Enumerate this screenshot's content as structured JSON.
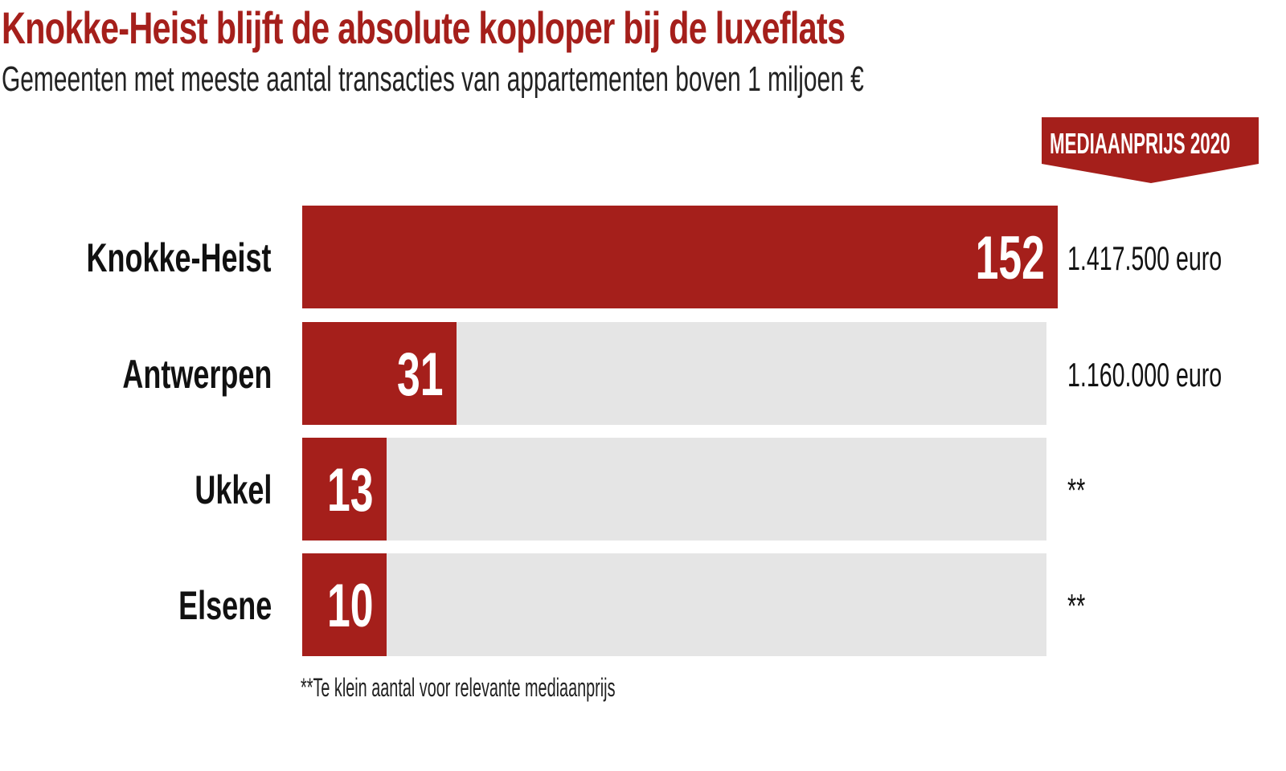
{
  "chart_data": {
    "type": "bar",
    "orientation": "horizontal",
    "title": "Knokke-Heist blijft de absolute koploper bij de luxeflats",
    "subtitle": "Gemeenten met meeste aantal transacties van appartementen boven 1 miljoen €",
    "column_header": "MEDIAANPRIJS 2020",
    "categories": [
      "Knokke-Heist",
      "Antwerpen",
      "Ukkel",
      "Elsene"
    ],
    "values": [
      152,
      31,
      13,
      10
    ],
    "value_labels": [
      "152",
      "31",
      "13",
      "10"
    ],
    "median_prices": [
      "1.417.500 euro",
      "1.160.000 euro",
      "**",
      "**"
    ],
    "footnote": "**Te klein aantal voor relevante mediaanprijs",
    "xlim": [
      0,
      152
    ],
    "colors": {
      "bar": "#a51f1b",
      "track": "#e5e5e5"
    }
  }
}
